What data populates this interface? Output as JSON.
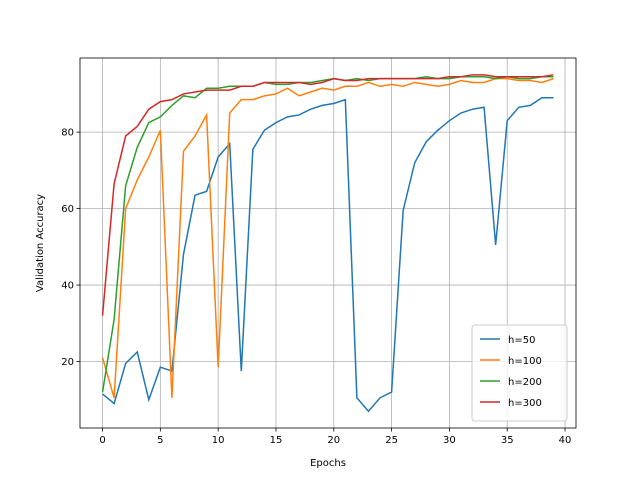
{
  "chart_data": {
    "type": "line",
    "xlabel": "Epochs",
    "ylabel": "Validation Accuracy",
    "x": [
      0,
      1,
      2,
      3,
      4,
      5,
      6,
      7,
      8,
      9,
      10,
      11,
      12,
      13,
      14,
      15,
      16,
      17,
      18,
      19,
      20,
      21,
      22,
      23,
      24,
      25,
      26,
      27,
      28,
      29,
      30,
      31,
      32,
      33,
      34,
      35,
      36,
      37,
      38,
      39
    ],
    "series": [
      {
        "name": "h=50",
        "color": "#1f77b4",
        "values": [
          11.5,
          9,
          19.5,
          22.5,
          10,
          18.5,
          17.5,
          48,
          63.5,
          64.5,
          73.5,
          77,
          17.5,
          75.5,
          80.5,
          82.5,
          84,
          84.5,
          86,
          87,
          87.5,
          88.5,
          10.5,
          7,
          10.5,
          12,
          59.5,
          72,
          77.5,
          80.5,
          83,
          85,
          86,
          86.5,
          50.5,
          83,
          86.5,
          87,
          89,
          89
        ]
      },
      {
        "name": "h=100",
        "color": "#ff7f0e",
        "values": [
          21,
          10.5,
          60,
          67.5,
          73.5,
          80.5,
          10.5,
          75,
          79,
          84.5,
          18.5,
          85,
          88.5,
          88.5,
          89.5,
          90,
          91.5,
          89.5,
          90.5,
          91.5,
          91,
          92,
          92,
          93,
          92,
          92.5,
          92,
          93,
          92.5,
          92,
          92.5,
          93.5,
          93,
          93,
          94,
          94,
          93.5,
          93.5,
          93,
          94
        ]
      },
      {
        "name": "h=200",
        "color": "#2ca02c",
        "values": [
          12,
          31,
          66,
          76,
          82.5,
          84,
          87,
          89.5,
          89,
          91.5,
          91.5,
          92,
          92,
          92,
          93,
          92.5,
          92.5,
          93,
          93,
          93.5,
          94,
          93.5,
          94,
          93.5,
          94,
          94,
          94,
          94,
          94.5,
          94,
          94,
          94.5,
          94.5,
          94.5,
          94,
          94.5,
          94,
          94,
          94.5,
          94.5
        ]
      },
      {
        "name": "h=300",
        "color": "#d62728",
        "values": [
          32,
          66.5,
          79,
          81.5,
          86,
          88,
          88.5,
          90,
          90.5,
          91,
          91,
          91,
          92,
          92,
          93,
          93,
          93,
          93,
          92.5,
          93,
          94,
          93.5,
          93.5,
          94,
          94,
          94,
          94,
          94,
          94,
          94,
          94.5,
          94.5,
          95,
          95,
          94.5,
          94.5,
          94.5,
          94.5,
          94.5,
          95
        ]
      }
    ],
    "xlim": [
      -1.95,
      40.95
    ],
    "ylim": [
      2.6,
      99.4
    ],
    "xticks": [
      0,
      5,
      10,
      15,
      20,
      25,
      30,
      35,
      40
    ],
    "yticks": [
      20,
      40,
      60,
      80
    ],
    "grid": true,
    "legend": "lower right"
  }
}
